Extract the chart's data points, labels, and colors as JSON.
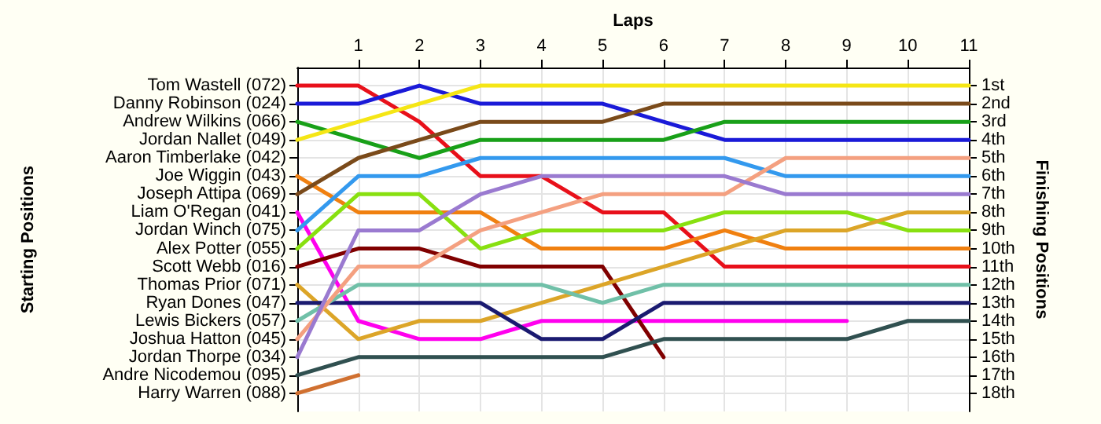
{
  "chart_data": {
    "type": "line",
    "xlabel": "Laps",
    "ylabel": "Finishing Positions",
    "x": [
      0,
      1,
      2,
      3,
      4,
      5,
      6,
      7,
      8,
      9,
      10,
      11
    ],
    "xlim": [
      0,
      11
    ],
    "xticks": [
      1,
      2,
      3,
      4,
      5,
      6,
      7,
      8,
      9,
      10,
      11
    ],
    "ylim": [
      19,
      0
    ],
    "yticks": [
      {
        "value": 1,
        "label": "1st"
      },
      {
        "value": 2,
        "label": "2nd"
      },
      {
        "value": 3,
        "label": "3rd"
      },
      {
        "value": 4,
        "label": "4th"
      },
      {
        "value": 5,
        "label": "5th"
      },
      {
        "value": 6,
        "label": "6th"
      },
      {
        "value": 7,
        "label": "7th"
      },
      {
        "value": 8,
        "label": "8th"
      },
      {
        "value": 9,
        "label": "9th"
      },
      {
        "value": 10,
        "label": "10th"
      },
      {
        "value": 11,
        "label": "11th"
      },
      {
        "value": 12,
        "label": "12th"
      },
      {
        "value": 13,
        "label": "13th"
      },
      {
        "value": 14,
        "label": "14th"
      },
      {
        "value": 15,
        "label": "15th"
      },
      {
        "value": 16,
        "label": "16th"
      },
      {
        "value": 17,
        "label": "17th"
      },
      {
        "value": 18,
        "label": "18th"
      }
    ],
    "annotations": [
      "Tom Wastell (072)",
      "Danny Robinson (024)",
      "Andrew Wilkins (066)",
      "Jordan Nallet (049)",
      "Aaron Timberlake (042)",
      "Joe Wiggin (043)",
      "Joseph Attipa (069)",
      "Liam O'Regan (041)",
      "Jordan Winch (075)",
      "Alex Potter (055)",
      "Scott Webb (016)",
      "Thomas Prior (071)",
      "Ryan Dones (047)",
      "Lewis Bickers (057)",
      "Joshua Hatton (045)",
      "Jordan Thorpe (034)",
      "Andre Nicodemou (095)",
      "Harry Warren (088)",
      "Starting Positions"
    ],
    "grid": true,
    "marker": "none",
    "line_style": "solid",
    "series": [
      {
        "color": "#e8101a",
        "values": [
          1,
          1,
          3,
          6,
          6,
          8,
          8,
          11,
          11,
          11,
          11,
          11
        ]
      },
      {
        "color": "#1a1ad8",
        "values": [
          2,
          2,
          1,
          2,
          2,
          2,
          3,
          4,
          4,
          4,
          4,
          4
        ]
      },
      {
        "color": "#18a018",
        "values": [
          3,
          4,
          5,
          4,
          4,
          4,
          4,
          3,
          3,
          3,
          3,
          3
        ]
      },
      {
        "color": "#f5e615",
        "values": [
          4,
          3,
          2,
          1,
          1,
          1,
          1,
          1,
          1,
          1,
          1,
          1
        ]
      },
      {
        "color": "#f08010",
        "values": [
          6,
          8,
          8,
          8,
          10,
          10,
          10,
          9,
          10,
          10,
          10,
          10
        ]
      },
      {
        "color": "#7a4a1a",
        "values": [
          7,
          5,
          4,
          3,
          3,
          3,
          2,
          2,
          2,
          2,
          2,
          2
        ]
      },
      {
        "color": "#ff00ee",
        "values": [
          8,
          14,
          15,
          15,
          14,
          14,
          14,
          14,
          14,
          14,
          null,
          null
        ]
      },
      {
        "color": "#3399ee",
        "values": [
          9,
          6,
          6,
          5,
          5,
          5,
          5,
          5,
          6,
          6,
          6,
          6
        ]
      },
      {
        "color": "#88e010",
        "values": [
          10,
          7,
          7,
          10,
          9,
          9,
          9,
          8,
          8,
          8,
          9,
          9
        ]
      },
      {
        "color": "#800000",
        "values": [
          11,
          10,
          10,
          11,
          11,
          11,
          16,
          null,
          null,
          null,
          null,
          null
        ]
      },
      {
        "color": "#dca528",
        "values": [
          12,
          15,
          14,
          14,
          13,
          12,
          11,
          10,
          9,
          9,
          8,
          8
        ]
      },
      {
        "color": "#1a1a70",
        "values": [
          13,
          13,
          13,
          13,
          15,
          15,
          13,
          13,
          13,
          13,
          13,
          13
        ]
      },
      {
        "color": "#70c0a8",
        "values": [
          14,
          12,
          12,
          12,
          12,
          13,
          12,
          12,
          12,
          12,
          12,
          12
        ]
      },
      {
        "color": "#f4a080",
        "values": [
          15,
          11,
          11,
          9,
          8,
          7,
          7,
          7,
          5,
          5,
          5,
          5
        ]
      },
      {
        "color": "#9a7ad0",
        "values": [
          16,
          9,
          9,
          7,
          6,
          6,
          6,
          6,
          7,
          7,
          7,
          7
        ]
      },
      {
        "color": "#305050",
        "values": [
          17,
          16,
          16,
          16,
          16,
          16,
          15,
          15,
          15,
          15,
          14,
          14
        ]
      },
      {
        "color": "#d07030",
        "values": [
          18,
          17,
          null,
          null,
          null,
          null,
          null,
          null,
          null,
          null,
          null,
          null
        ]
      }
    ]
  }
}
